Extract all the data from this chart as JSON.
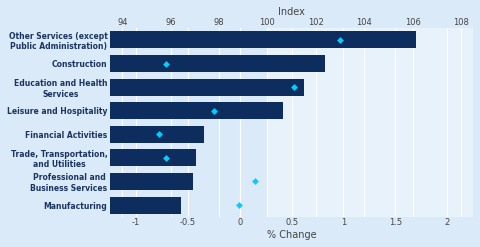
{
  "categories": [
    "Other Services (except\nPublic Administration)",
    "Construction",
    "Education and Health\nServices",
    "Leisure and Hospitality",
    "Financial Activities",
    "Trade, Transportation,\nand Utilities",
    "Professional and\nBusiness Services",
    "Manufacturing"
  ],
  "pct_change": [
    1.7,
    0.82,
    0.62,
    0.42,
    -0.35,
    -0.42,
    -0.45,
    -0.57
  ],
  "index_values": [
    103.0,
    95.8,
    101.08,
    97.8,
    95.5,
    95.8,
    99.47,
    98.82
  ],
  "bar_color": "#0d2d5e",
  "marker_color": "#00cfff",
  "bg_color": "#daeaf8",
  "bg_right_color": "#e8f2fb",
  "title": "Index",
  "xlabel": "% Change",
  "pct_xlim": [
    -1.25,
    2.25
  ],
  "pct_ticks": [
    -1,
    -0.5,
    0,
    0.5,
    1,
    1.5,
    2
  ],
  "index_xlim": [
    93.5,
    108.5
  ],
  "index_ticks": [
    94,
    96,
    98,
    100,
    102,
    104,
    106,
    108
  ],
  "label_fontsize": 5.5,
  "tick_fontsize": 6.0,
  "xlabel_fontsize": 7.0,
  "bar_height": 0.72
}
